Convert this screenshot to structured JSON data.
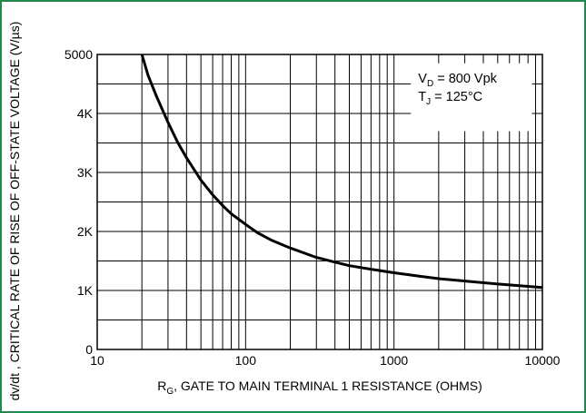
{
  "chart_data": {
    "type": "line",
    "title": "",
    "xlabel": {
      "main": "R",
      "sub": "G",
      "rest": ", GATE TO MAIN TERMINAL 1 RESISTANCE (OHMS)"
    },
    "ylabel": "dv/dt , CRITICAL RATE OF RISE OF OFF-STATE VOLTAGE (V/µs)",
    "x_scale": "log",
    "xlim": [
      10,
      10000
    ],
    "ylim": [
      0,
      5000
    ],
    "grid": true,
    "x_ticks": [
      {
        "value": 10,
        "label": "10"
      },
      {
        "value": 100,
        "label": "100"
      },
      {
        "value": 1000,
        "label": "1000"
      },
      {
        "value": 10000,
        "label": "10000"
      }
    ],
    "y_ticks": [
      {
        "value": 0,
        "label": "0"
      },
      {
        "value": 1000,
        "label": "1K"
      },
      {
        "value": 2000,
        "label": "2K"
      },
      {
        "value": 3000,
        "label": "3K"
      },
      {
        "value": 4000,
        "label": "4K"
      },
      {
        "value": 5000,
        "label": "5000"
      }
    ],
    "annotations": [
      {
        "main": "V",
        "sub": "D",
        "rest": " = 800 Vpk"
      },
      {
        "main": "T",
        "sub": "J",
        "rest": " = 125°C"
      }
    ],
    "series": [
      {
        "x": [
          20,
          22,
          25,
          30,
          35,
          40,
          50,
          60,
          70,
          80,
          100,
          120,
          150,
          200,
          300,
          400,
          500,
          700,
          1000,
          1500,
          2000,
          3000,
          5000,
          7000,
          10000
        ],
        "y": [
          5000,
          4650,
          4300,
          3850,
          3500,
          3250,
          2870,
          2620,
          2440,
          2300,
          2120,
          1980,
          1850,
          1720,
          1560,
          1480,
          1420,
          1360,
          1300,
          1240,
          1200,
          1160,
          1110,
          1080,
          1050
        ]
      }
    ]
  }
}
